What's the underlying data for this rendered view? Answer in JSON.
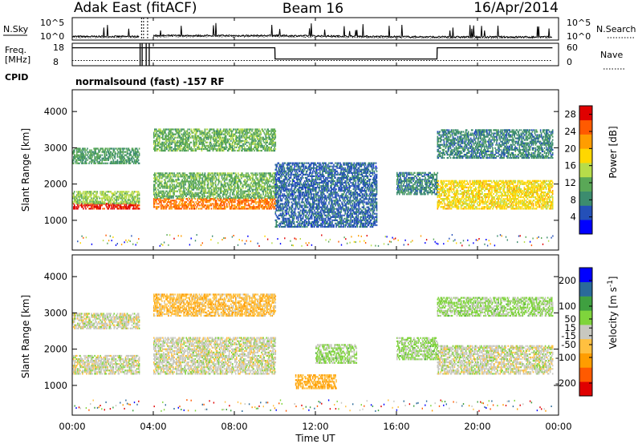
{
  "header": {
    "station": "Adak East (fitACF)",
    "beam": "Beam 16",
    "date": "16/Apr/2014"
  },
  "noise_panel": {
    "left_label": "N.Sky",
    "right_label": "N.Search",
    "left_ticks": [
      "10^5",
      "10^0"
    ],
    "right_ticks": [
      "10^5",
      "10^0"
    ]
  },
  "freq_panel": {
    "left_label_1": "Freq.",
    "left_label_2": "[MHz]",
    "right_label": "Nave",
    "left_ticks": [
      "18",
      "8"
    ],
    "right_ticks": [
      "60",
      "0"
    ]
  },
  "cpid": {
    "label": "CPID",
    "text": "normalsound (fast) -157 RF"
  },
  "colors": {
    "power": [
      "#0000ff",
      "#2450b8",
      "#3c8c6e",
      "#5aa857",
      "#b7dc4a",
      "#ffd700",
      "#ff9d00",
      "#ff5a00",
      "#e00000"
    ],
    "velocity": [
      "#e00000",
      "#ff5a00",
      "#ff9d00",
      "#ffc040",
      "#c8c8c0",
      "#7fd43c",
      "#3fa040",
      "#2a6a9a",
      "#0000ff"
    ],
    "ground": "#bcbcb4"
  },
  "chart_data": [
    {
      "type": "line",
      "title": "Adak East (fitACF)",
      "series": [
        {
          "name": "N.Sky",
          "x_hours": [
            0,
            3.3,
            4.0,
            10,
            18,
            23.7
          ],
          "y_log10": [
            0.8,
            0.8,
            1.0,
            1.0,
            0.7,
            0.7
          ]
        },
        {
          "name": "N.Search",
          "x_hours": [
            0,
            3.3,
            4.0,
            10,
            18,
            23.7
          ],
          "y_log10": [
            0.6,
            0.6,
            0.8,
            0.8,
            0.5,
            0.5
          ]
        }
      ],
      "ylabel": "N.Sky",
      "ylim": [
        0,
        5
      ]
    },
    {
      "type": "line",
      "series": [
        {
          "name": "Freq.",
          "x_hours": [
            0,
            3.3,
            4.0,
            10.0,
            10.01,
            18.0,
            18.01,
            23.7
          ],
          "y": [
            16,
            16,
            16,
            16,
            11,
            11,
            16,
            16
          ]
        },
        {
          "name": "Nave",
          "x_hours": [
            0,
            23.7
          ],
          "y": [
            14,
            14
          ]
        }
      ],
      "ylabel": "Freq. [MHz]",
      "ylim": [
        8,
        18
      ],
      "y2label": "Nave",
      "y2lim": [
        0,
        60
      ]
    },
    {
      "type": "heatmap",
      "ylabel": "Slant Range [km]",
      "xlabel": "Time UT",
      "colorbar_label": "Power [dB]",
      "colorbar_ticks": [
        "4",
        "8",
        "12",
        "16",
        "20",
        "24",
        "28"
      ],
      "colorbar_range": [
        0,
        30
      ],
      "y_ticks": [
        "1000",
        "2000",
        "3000",
        "4000"
      ],
      "ylim": [
        180,
        4600
      ],
      "x_ticks": [
        "00:00",
        "04:00",
        "08:00",
        "12:00",
        "16:00",
        "20:00",
        "00:00"
      ],
      "xlim": [
        0,
        24
      ],
      "bands": [
        {
          "t0": 0,
          "t1": 3.3,
          "r0": 1300,
          "r1": 1450,
          "power": 28
        },
        {
          "t0": 0,
          "t1": 3.3,
          "r0": 1450,
          "r1": 1800,
          "power": 14
        },
        {
          "t0": 0,
          "t1": 3.3,
          "r0": 2550,
          "r1": 3000,
          "power": 10
        },
        {
          "t0": 4.0,
          "t1": 10.0,
          "r0": 1300,
          "r1": 1600,
          "power": 24
        },
        {
          "t0": 4.0,
          "t1": 10.0,
          "r0": 1600,
          "r1": 2300,
          "power": 12
        },
        {
          "t0": 4.0,
          "t1": 10.0,
          "r0": 2900,
          "r1": 3500,
          "power": 12
        },
        {
          "t0": 10.0,
          "t1": 15.0,
          "r0": 800,
          "r1": 2600,
          "power": 6
        },
        {
          "t0": 16.0,
          "t1": 18.0,
          "r0": 1700,
          "r1": 2300,
          "power": 8
        },
        {
          "t0": 18.0,
          "t1": 23.7,
          "r0": 1300,
          "r1": 2100,
          "power": 18
        },
        {
          "t0": 18.0,
          "t1": 23.7,
          "r0": 2700,
          "r1": 3500,
          "power": 8
        }
      ]
    },
    {
      "type": "heatmap",
      "ylabel": "Slant Range [km]",
      "xlabel": "Time UT",
      "colorbar_label": "Velocity [m s^-1]",
      "colorbar_ticks": [
        "-200",
        "-100",
        "-50",
        "-15",
        "15",
        "50",
        "100",
        "200"
      ],
      "colorbar_range": [
        -250,
        250
      ],
      "y_ticks": [
        "1000",
        "2000",
        "3000",
        "4000"
      ],
      "ylim": [
        180,
        4600
      ],
      "x_ticks": [
        "00:00",
        "04:00",
        "08:00",
        "12:00",
        "16:00",
        "20:00",
        "00:00"
      ],
      "xlim": [
        0,
        24
      ],
      "bands": [
        {
          "t0": 0,
          "t1": 3.3,
          "r0": 1300,
          "r1": 1800,
          "velocity": 0
        },
        {
          "t0": 0,
          "t1": 3.3,
          "r0": 2550,
          "r1": 3000,
          "velocity": 0
        },
        {
          "t0": 4.0,
          "t1": 10.0,
          "r0": 1300,
          "r1": 2300,
          "velocity": 0
        },
        {
          "t0": 4.0,
          "t1": 10.0,
          "r0": 2900,
          "r1": 3500,
          "velocity": -60
        },
        {
          "t0": 11.0,
          "t1": 13.0,
          "r0": 900,
          "r1": 1300,
          "velocity": -80
        },
        {
          "t0": 12.0,
          "t1": 14.0,
          "r0": 1600,
          "r1": 2100,
          "velocity": 40
        },
        {
          "t0": 16.0,
          "t1": 18.0,
          "r0": 1700,
          "r1": 2300,
          "velocity": 40
        },
        {
          "t0": 18.0,
          "t1": 23.7,
          "r0": 1300,
          "r1": 2100,
          "velocity": 0
        },
        {
          "t0": 18.0,
          "t1": 23.7,
          "r0": 2900,
          "r1": 3400,
          "velocity": 40
        }
      ]
    }
  ],
  "xaxis": {
    "label": "Time UT",
    "ticks": [
      "00:00",
      "04:00",
      "08:00",
      "12:00",
      "16:00",
      "20:00",
      "00:00"
    ]
  },
  "power_panel": {
    "ylabel": "Slant Range [km]",
    "colorbar_label": "Power [dB]"
  },
  "velocity_panel": {
    "ylabel": "Slant Range [km]",
    "colorbar_label": "Velocity [m s",
    "colorbar_label_sup": "-1",
    "colorbar_label_end": "]"
  }
}
